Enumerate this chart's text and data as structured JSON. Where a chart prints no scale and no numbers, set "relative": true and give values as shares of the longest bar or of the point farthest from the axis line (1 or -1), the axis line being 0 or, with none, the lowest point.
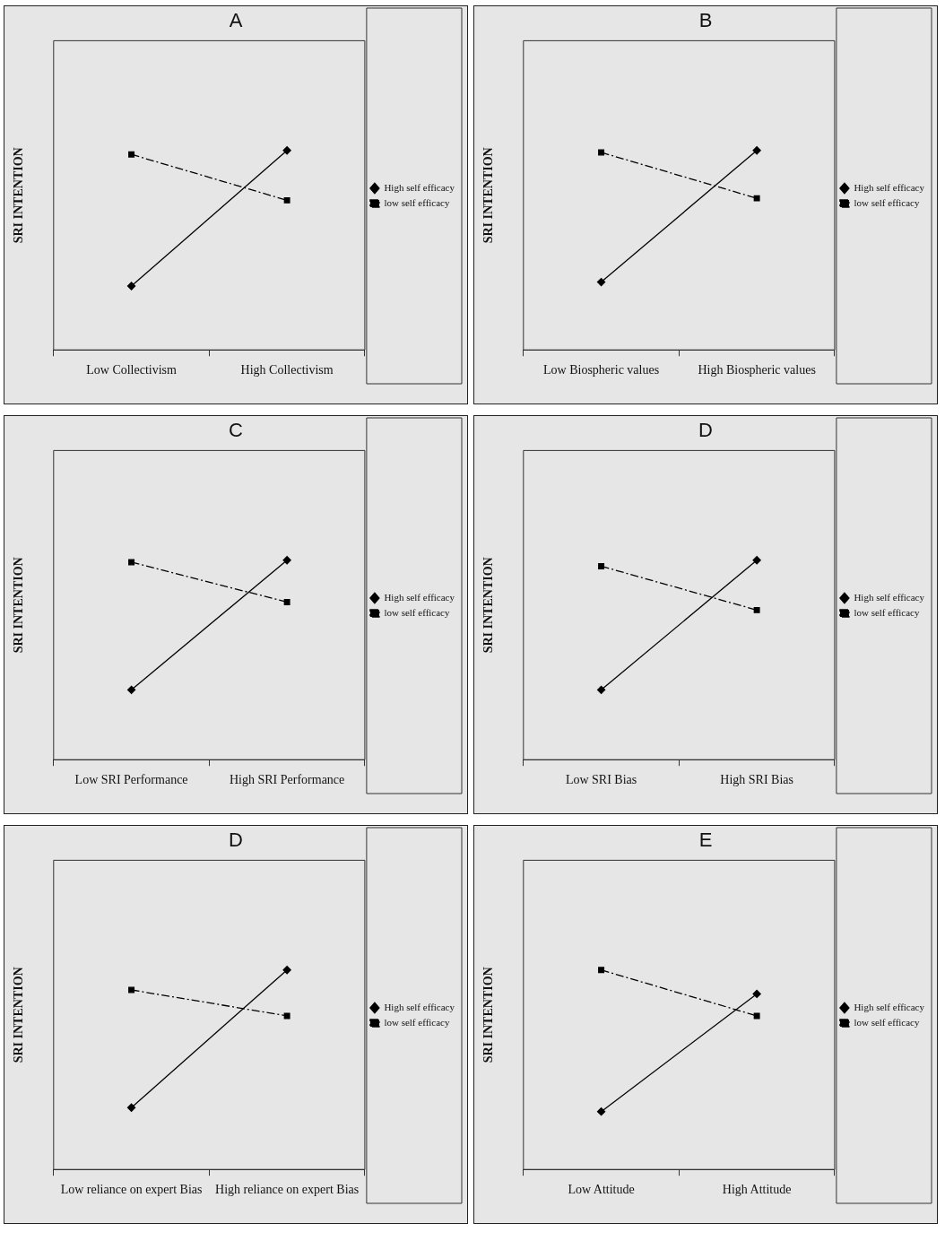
{
  "chart_data": [
    {
      "type": "line",
      "title": "A",
      "ylabel": "SRI INTENTION",
      "categories": [
        "Low Collectivism",
        "High Collectivism"
      ],
      "relative": true,
      "legend": "right",
      "series": [
        {
          "name": "High self efficacy",
          "color": "#000000",
          "marker": "diamond",
          "line_style": "solid",
          "values": [
            0.32,
            1
          ]
        },
        {
          "name": "low self efficacy",
          "color": "#000000",
          "marker": "square",
          "line_style": "dashed",
          "values": [
            0.98,
            0.75
          ]
        }
      ]
    },
    {
      "type": "line",
      "title": "B",
      "ylabel": "SRI INTENTION",
      "categories": [
        "Low Biospheric values",
        "High Biospheric values"
      ],
      "relative": true,
      "legend": "right",
      "series": [
        {
          "name": "High self efficacy",
          "color": "#000000",
          "marker": "diamond",
          "line_style": "solid",
          "values": [
            0.34,
            1
          ]
        },
        {
          "name": "low self efficacy",
          "color": "#000000",
          "marker": "square",
          "line_style": "dashed",
          "values": [
            0.99,
            0.76
          ]
        }
      ]
    },
    {
      "type": "line",
      "title": "C",
      "ylabel": "SRI INTENTION",
      "categories": [
        "Low SRI Performance",
        "High SRI Performance"
      ],
      "relative": true,
      "legend": "right",
      "series": [
        {
          "name": "High self efficacy",
          "color": "#000000",
          "marker": "diamond",
          "line_style": "solid",
          "values": [
            0.35,
            1
          ]
        },
        {
          "name": "low self efficacy",
          "color": "#000000",
          "marker": "square",
          "line_style": "dashed",
          "values": [
            0.99,
            0.79
          ]
        }
      ]
    },
    {
      "type": "line",
      "title": "D",
      "ylabel": "SRI INTENTION",
      "categories": [
        "Low SRI Bias",
        "High SRI Bias"
      ],
      "relative": true,
      "legend": "right",
      "series": [
        {
          "name": "High self efficacy",
          "color": "#000000",
          "marker": "diamond",
          "line_style": "solid",
          "values": [
            0.35,
            1
          ]
        },
        {
          "name": "low self efficacy",
          "color": "#000000",
          "marker": "square",
          "line_style": "dashed",
          "values": [
            0.97,
            0.75
          ]
        }
      ]
    },
    {
      "type": "line",
      "title": "D",
      "ylabel": "SRI INTENTION",
      "categories": [
        "Low reliance on expert Bias",
        "High reliance on expert Bias"
      ],
      "relative": true,
      "legend": "right",
      "series": [
        {
          "name": "High self efficacy",
          "color": "#000000",
          "marker": "diamond",
          "line_style": "solid",
          "values": [
            0.31,
            1
          ]
        },
        {
          "name": "low self efficacy",
          "color": "#000000",
          "marker": "square",
          "line_style": "dashed",
          "values": [
            0.9,
            0.77
          ]
        }
      ]
    },
    {
      "type": "line",
      "title": "E",
      "ylabel": "SRI INTENTION",
      "categories": [
        "Low Attitude",
        "High Attitude"
      ],
      "relative": true,
      "legend": "right",
      "series": [
        {
          "name": "High self efficacy",
          "color": "#000000",
          "marker": "diamond",
          "line_style": "solid",
          "values": [
            0.29,
            0.88
          ]
        },
        {
          "name": "low self efficacy",
          "color": "#000000",
          "marker": "square",
          "line_style": "dashed",
          "values": [
            1,
            0.77
          ]
        }
      ]
    }
  ]
}
